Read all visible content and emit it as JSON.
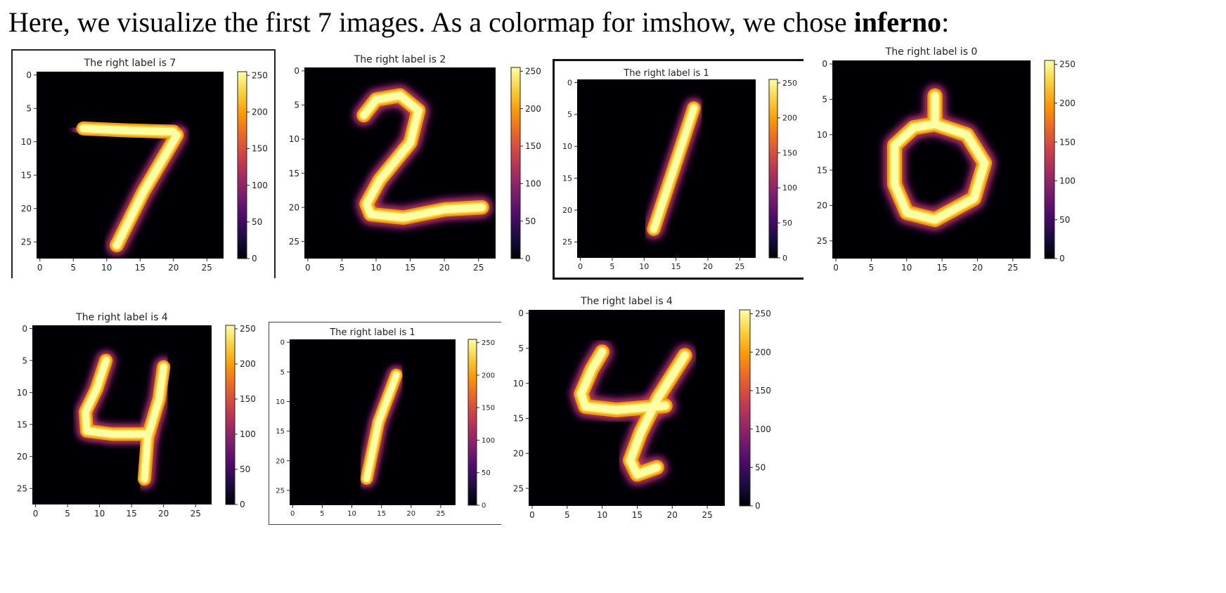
{
  "heading": {
    "text_before": "Here, we visualize the first 7 images. As a colormap for imshow, we chose ",
    "emphasis": "inferno",
    "text_after": ":"
  },
  "colors": {
    "inferno": [
      "#000004",
      "#1b0c41",
      "#4a0c6b",
      "#781c6d",
      "#a52c60",
      "#cf4446",
      "#ed6925",
      "#fb9b06",
      "#f7d13d",
      "#fcffa4"
    ]
  },
  "chart_data": [
    {
      "type": "heatmap",
      "colormap": "inferno",
      "title": "The right label is 7",
      "digit": 7,
      "x_ticks": [
        0,
        5,
        10,
        15,
        20,
        25
      ],
      "y_ticks": [
        0,
        5,
        10,
        15,
        20,
        25
      ],
      "colorbar_ticks": [
        0,
        50,
        100,
        150,
        200,
        250
      ],
      "value_range": [
        0,
        255
      ],
      "strokes": [
        [
          [
            6.5,
            8
          ],
          [
            13,
            8.3
          ],
          [
            20,
            8.5
          ]
        ],
        [
          [
            20.5,
            9
          ],
          [
            15.5,
            17.5
          ],
          [
            11.5,
            25.5
          ]
        ]
      ]
    },
    {
      "type": "heatmap",
      "colormap": "inferno",
      "title": "The right label is 2",
      "digit": 2,
      "x_ticks": [
        0,
        5,
        10,
        15,
        20,
        25
      ],
      "y_ticks": [
        0,
        5,
        10,
        15,
        20,
        25
      ],
      "colorbar_ticks": [
        0,
        50,
        100,
        150,
        200,
        250
      ],
      "value_range": [
        0,
        255
      ],
      "strokes": [
        [
          [
            8.2,
            6.5
          ],
          [
            10,
            4.2
          ],
          [
            13.5,
            3.6
          ],
          [
            16.2,
            5.8
          ],
          [
            15,
            10.5
          ],
          [
            10.5,
            16
          ],
          [
            8.6,
            19.5
          ],
          [
            9.2,
            21
          ],
          [
            14,
            21.5
          ],
          [
            20,
            20.3
          ],
          [
            25.5,
            20
          ]
        ]
      ]
    },
    {
      "type": "heatmap",
      "colormap": "inferno",
      "title": "The right label is 1",
      "digit": 1,
      "x_ticks": [
        0,
        5,
        10,
        15,
        20,
        25
      ],
      "y_ticks": [
        0,
        5,
        10,
        15,
        20,
        25
      ],
      "colorbar_ticks": [
        0,
        50,
        100,
        150,
        200,
        250
      ],
      "value_range": [
        0,
        255
      ],
      "strokes": [
        [
          [
            17.8,
            4
          ],
          [
            15,
            12.5
          ],
          [
            11.5,
            23
          ]
        ]
      ]
    },
    {
      "type": "heatmap",
      "colormap": "inferno",
      "title": "The right label is 0",
      "digit": 0,
      "x_ticks": [
        0,
        5,
        10,
        15,
        20,
        25
      ],
      "y_ticks": [
        0,
        5,
        10,
        15,
        20,
        25
      ],
      "colorbar_ticks": [
        0,
        50,
        100,
        150,
        200,
        250
      ],
      "value_range": [
        0,
        255
      ],
      "strokes": [
        [
          [
            14,
            4.5
          ],
          [
            14,
            8.5
          ],
          [
            18.5,
            10
          ],
          [
            21,
            14
          ],
          [
            19.5,
            19
          ],
          [
            14,
            22
          ],
          [
            10,
            21
          ],
          [
            8.3,
            17
          ],
          [
            8.3,
            11.5
          ],
          [
            11,
            9
          ],
          [
            14,
            8.5
          ]
        ]
      ]
    },
    {
      "type": "heatmap",
      "colormap": "inferno",
      "title": "The right label is 4",
      "digit": 4,
      "x_ticks": [
        0,
        5,
        10,
        15,
        20,
        25
      ],
      "y_ticks": [
        0,
        5,
        10,
        15,
        20,
        25
      ],
      "colorbar_ticks": [
        0,
        50,
        100,
        150,
        200,
        250
      ],
      "value_range": [
        0,
        255
      ],
      "strokes": [
        [
          [
            11,
            5
          ],
          [
            9.5,
            9.5
          ],
          [
            7.8,
            13
          ],
          [
            8,
            16
          ],
          [
            12,
            16.5
          ],
          [
            17.5,
            16.5
          ]
        ],
        [
          [
            20,
            6
          ],
          [
            19.3,
            11
          ],
          [
            17.5,
            17
          ],
          [
            17,
            23.5
          ]
        ]
      ]
    },
    {
      "type": "heatmap",
      "colormap": "inferno",
      "title": "The right label is 1",
      "digit": 1,
      "x_ticks": [
        0,
        5,
        10,
        15,
        20,
        25
      ],
      "y_ticks": [
        0,
        5,
        10,
        15,
        20,
        25
      ],
      "colorbar_ticks": [
        0,
        50,
        100,
        150,
        200,
        250
      ],
      "value_range": [
        0,
        255
      ],
      "strokes": [
        [
          [
            17.5,
            5.5
          ],
          [
            14.5,
            13.5
          ],
          [
            12.5,
            23
          ]
        ]
      ]
    },
    {
      "type": "heatmap",
      "colormap": "inferno",
      "title": "The right label is 4",
      "digit": 4,
      "x_ticks": [
        0,
        5,
        10,
        15,
        20,
        25
      ],
      "y_ticks": [
        0,
        5,
        10,
        15,
        20,
        25
      ],
      "colorbar_ticks": [
        0,
        50,
        100,
        150,
        200,
        250
      ],
      "value_range": [
        0,
        255
      ],
      "strokes": [
        [
          [
            10,
            5.5
          ],
          [
            8.5,
            8
          ],
          [
            7,
            11.5
          ],
          [
            7.6,
            13.3
          ],
          [
            12,
            13.8
          ],
          [
            19,
            13.2
          ]
        ],
        [
          [
            21.8,
            6
          ],
          [
            18,
            12
          ],
          [
            15.5,
            17
          ],
          [
            14,
            21
          ],
          [
            15,
            23
          ],
          [
            17.8,
            22
          ]
        ]
      ]
    }
  ]
}
